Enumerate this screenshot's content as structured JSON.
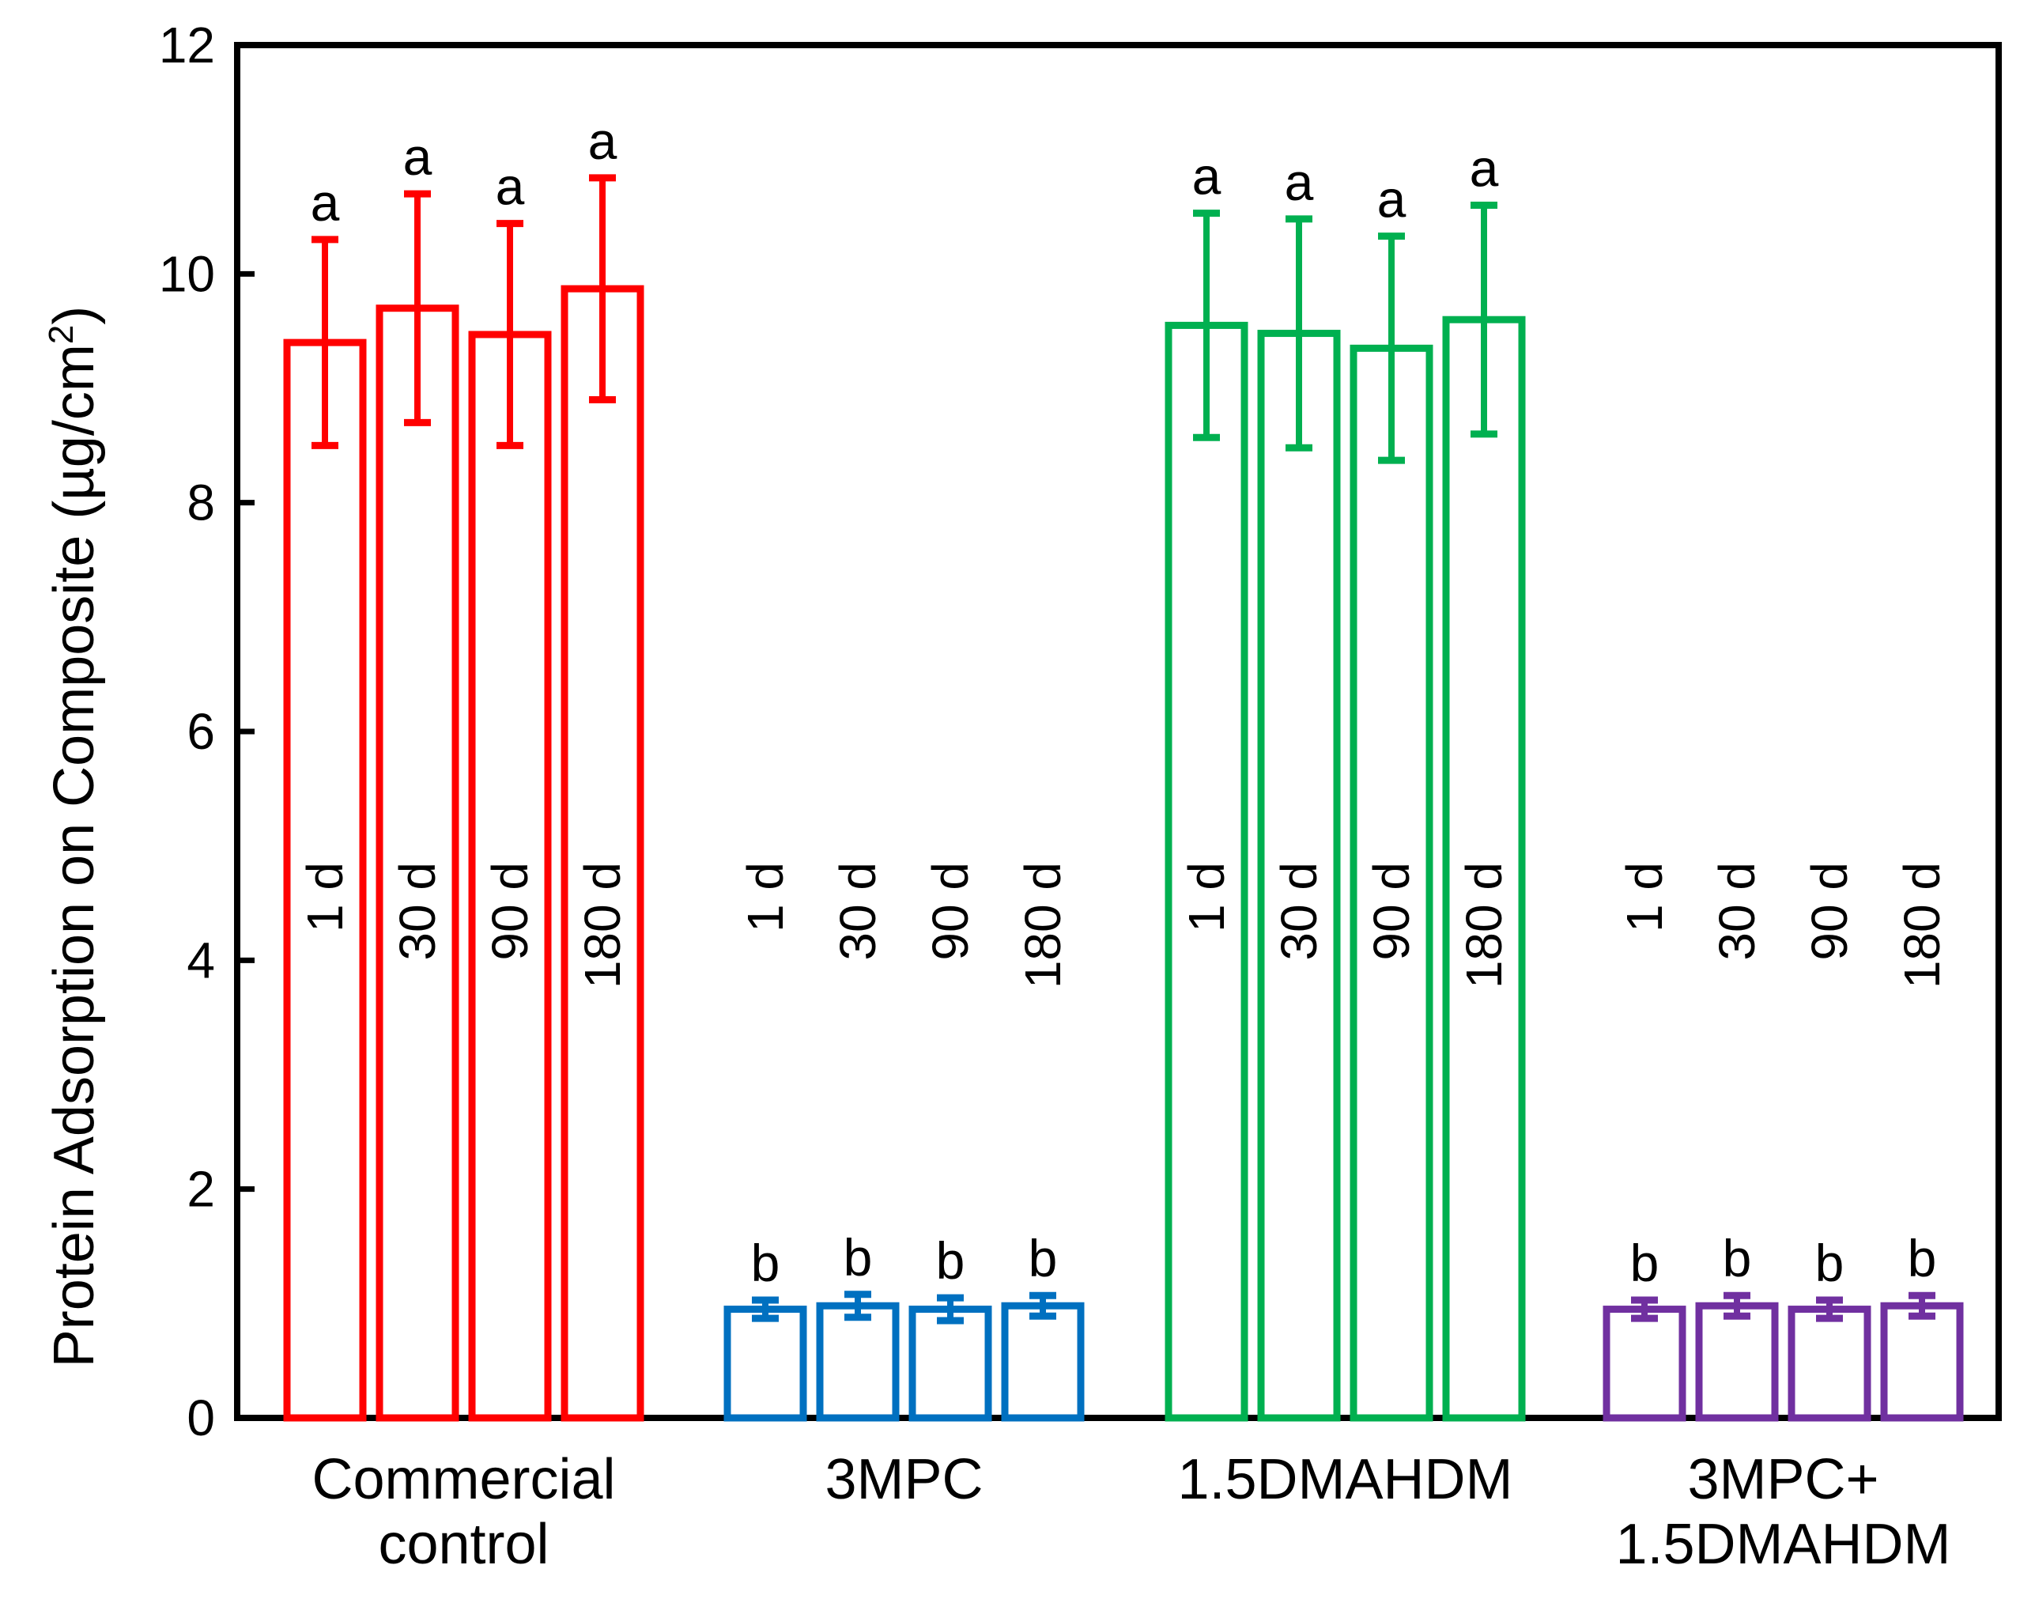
{
  "chart_data": {
    "type": "bar",
    "ylabel": "Protein Adsorption on Composite (µg/cm²)",
    "ylabel_parts": {
      "main": "Protein Adsorption on Composite (µg/cm",
      "sup": "2",
      "end": ")"
    },
    "ylim": [
      0,
      12
    ],
    "yticks": [
      "0",
      "2",
      "4",
      "6",
      "8",
      "10",
      "12"
    ],
    "grid": false,
    "groups": [
      {
        "name": "Commercial control",
        "label_lines": [
          "Commercial",
          "control"
        ],
        "color": "#ff0000",
        "bars": [
          {
            "label": "1 d",
            "value": 9.4,
            "error": 0.9,
            "letter": "a"
          },
          {
            "label": "30 d",
            "value": 9.7,
            "error": 1.0,
            "letter": "a"
          },
          {
            "label": "90 d",
            "value": 9.47,
            "error": 0.97,
            "letter": "a"
          },
          {
            "label": "180 d",
            "value": 9.87,
            "error": 0.97,
            "letter": "a"
          }
        ]
      },
      {
        "name": "3MPC",
        "label_lines": [
          "3MPC"
        ],
        "color": "#0070c0",
        "bars": [
          {
            "label": "1 d",
            "value": 0.95,
            "error": 0.08,
            "letter": "b"
          },
          {
            "label": "30 d",
            "value": 0.98,
            "error": 0.1,
            "letter": "b"
          },
          {
            "label": "90 d",
            "value": 0.95,
            "error": 0.1,
            "letter": "b"
          },
          {
            "label": "180 d",
            "value": 0.98,
            "error": 0.09,
            "letter": "b"
          }
        ]
      },
      {
        "name": "1.5DMAHDM",
        "label_lines": [
          "1.5DMAHDM"
        ],
        "color": "#00b050",
        "bars": [
          {
            "label": "1 d",
            "value": 9.55,
            "error": 0.98,
            "letter": "a"
          },
          {
            "label": "30 d",
            "value": 9.48,
            "error": 1.0,
            "letter": "a"
          },
          {
            "label": "90 d",
            "value": 9.35,
            "error": 0.98,
            "letter": "a"
          },
          {
            "label": "180 d",
            "value": 9.6,
            "error": 1.0,
            "letter": "a"
          }
        ]
      },
      {
        "name": "3MPC+ 1.5DMAHDM",
        "label_lines": [
          "3MPC+",
          "1.5DMAHDM"
        ],
        "color": "#7030a0",
        "bars": [
          {
            "label": "1 d",
            "value": 0.95,
            "error": 0.08,
            "letter": "b"
          },
          {
            "label": "30 d",
            "value": 0.98,
            "error": 0.09,
            "letter": "b"
          },
          {
            "label": "90 d",
            "value": 0.95,
            "error": 0.08,
            "letter": "b"
          },
          {
            "label": "180 d",
            "value": 0.98,
            "error": 0.09,
            "letter": "b"
          }
        ]
      }
    ]
  }
}
